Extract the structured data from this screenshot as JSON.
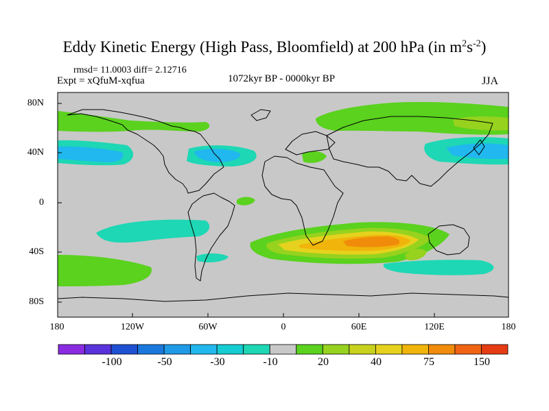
{
  "title": {
    "main": "Eddy Kinetic Energy (High Pass, Bloomfield) at 200 hPa (in m",
    "exp1": "2",
    "mid": "s",
    "exp2": "-2",
    "end": ")"
  },
  "stats_text": "rmsd= 11.0003 diff= 2.12716",
  "expt_text": "Expt = xQfuM-xqfua",
  "period_text": "1072kyr BP - 0000kyr BP",
  "season_text": "JJA",
  "lat_ticks": [
    "80N",
    "40N",
    "0",
    "40S",
    "80S"
  ],
  "lon_ticks": [
    "180",
    "120W",
    "60W",
    "0",
    "60E",
    "120E",
    "180"
  ],
  "colorbar": {
    "colors": [
      "#8a2be2",
      "#5a32dc",
      "#1e50d2",
      "#1a78dc",
      "#1e9ae6",
      "#20b8ee",
      "#14ccd2",
      "#1ed7b4",
      "#c8c8c8",
      "#5ad21e",
      "#96d21e",
      "#c8d21e",
      "#e6d21e",
      "#f0b40a",
      "#f08c0a",
      "#f06414",
      "#e63c14"
    ],
    "labels": [
      "-100",
      "-50",
      "-30",
      "-10",
      "20",
      "40",
      "75",
      "150"
    ]
  },
  "colors": {
    "ocean": "#c8c8c8",
    "coast": "#000000"
  }
}
